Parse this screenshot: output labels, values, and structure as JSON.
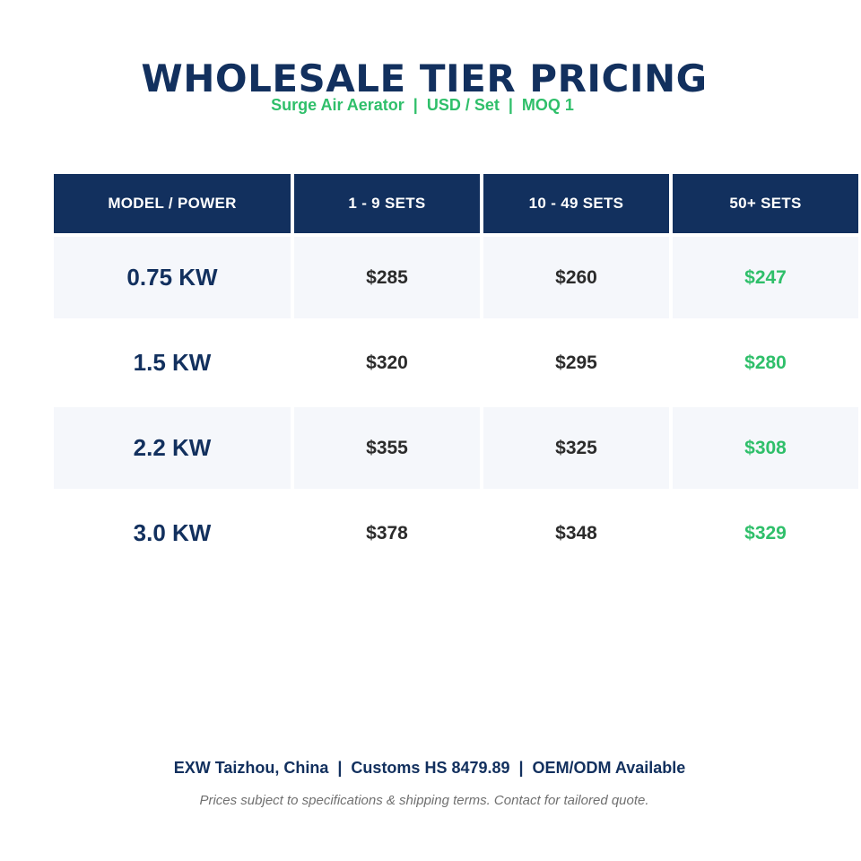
{
  "header": {
    "title": "WHOLESALE TIER PRICING",
    "subtitle": "Surge Air Aerator  |  USD / Set  |  MOQ 1"
  },
  "table": {
    "columns": [
      "MODEL / POWER",
      "1 - 9 SETS",
      "10 - 49 SETS",
      "50+ SETS"
    ],
    "rows": [
      {
        "model": "0.75 KW",
        "prices": [
          "$285",
          "$260",
          "$247"
        ]
      },
      {
        "model": "1.5 KW",
        "prices": [
          "$320",
          "$295",
          "$280"
        ]
      },
      {
        "model": "2.2 KW",
        "prices": [
          "$355",
          "$325",
          "$308"
        ]
      },
      {
        "model": "3.0 KW",
        "prices": [
          "$378",
          "$348",
          "$329"
        ]
      }
    ]
  },
  "footer": {
    "terms": "EXW Taizhou, China  |  Customs HS 8479.89  |  OEM/ODM Available",
    "note": "Prices subject to specifications & shipping terms. Contact for tailored quote."
  },
  "colors": {
    "navy": "#12305e",
    "accent_green": "#2fbf6a",
    "row_shade": "#f5f7fb"
  }
}
